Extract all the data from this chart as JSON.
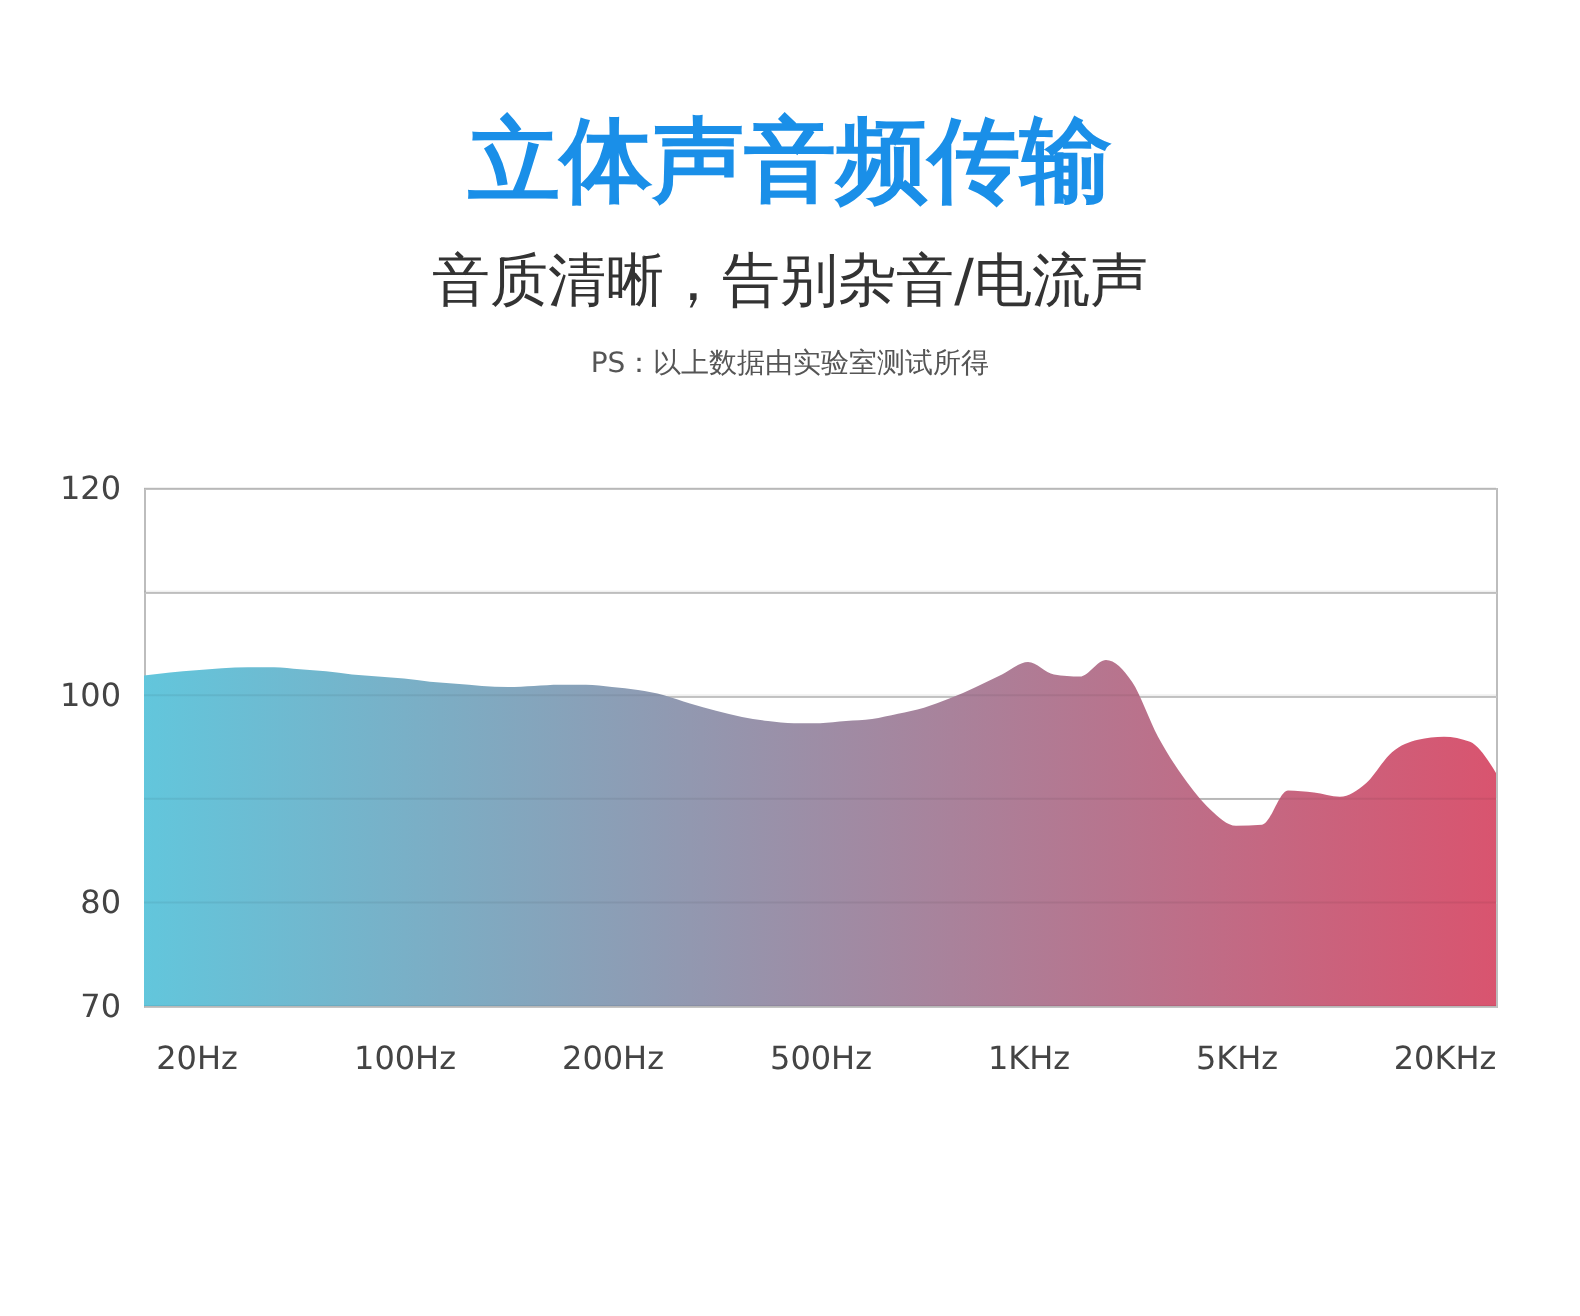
{
  "chart_data": {
    "type": "area",
    "title": "立体声音频传输",
    "subtitle": "音质清晰，告别杂音/电流声",
    "annotations": [
      "PS：以上数据由实验室测试所得"
    ],
    "categories": [
      null,
      null,
      "20Hz",
      null,
      null,
      null,
      null,
      null,
      null,
      null,
      "100Hz",
      null,
      null,
      null,
      null,
      null,
      null,
      null,
      "200Hz",
      null,
      null,
      null,
      null,
      null,
      null,
      null,
      "500Hz",
      null,
      null,
      null,
      null,
      null,
      null,
      null,
      "1KHz",
      null,
      null,
      null,
      null,
      null,
      null,
      null,
      "5KHz",
      null,
      null,
      null,
      null,
      null,
      null,
      null,
      "20KHz",
      null,
      null
    ],
    "ylim": [
      70,
      120
    ],
    "yticks": [
      70,
      80,
      {
        "value": 90,
        "label": null
      },
      100,
      {
        "value": 110,
        "label": null
      },
      120
    ],
    "grid": "y",
    "series": [
      {
        "color": "#62c6dc",
        "values": [
          101.9,
          102.2,
          102.4,
          102.6,
          102.7,
          102.7,
          102.5,
          102.3,
          102.0,
          101.8,
          101.6,
          101.3,
          101.1,
          100.9,
          100.8,
          100.9,
          101.0,
          101.0,
          100.8,
          100.5,
          100.0,
          99.2,
          98.5,
          97.9,
          97.5,
          97.3,
          97.3,
          97.5,
          97.7,
          98.2,
          98.8,
          99.7,
          100.8,
          102.0,
          103.2,
          102.0,
          101.8,
          103.4,
          101.3,
          96.0,
          92.0,
          89.0,
          87.4,
          87.5,
          90.8,
          90.6,
          90.2,
          91.5,
          94.5,
          95.7,
          96.0,
          95.5,
          92.5
        ]
      }
    ]
  }
}
